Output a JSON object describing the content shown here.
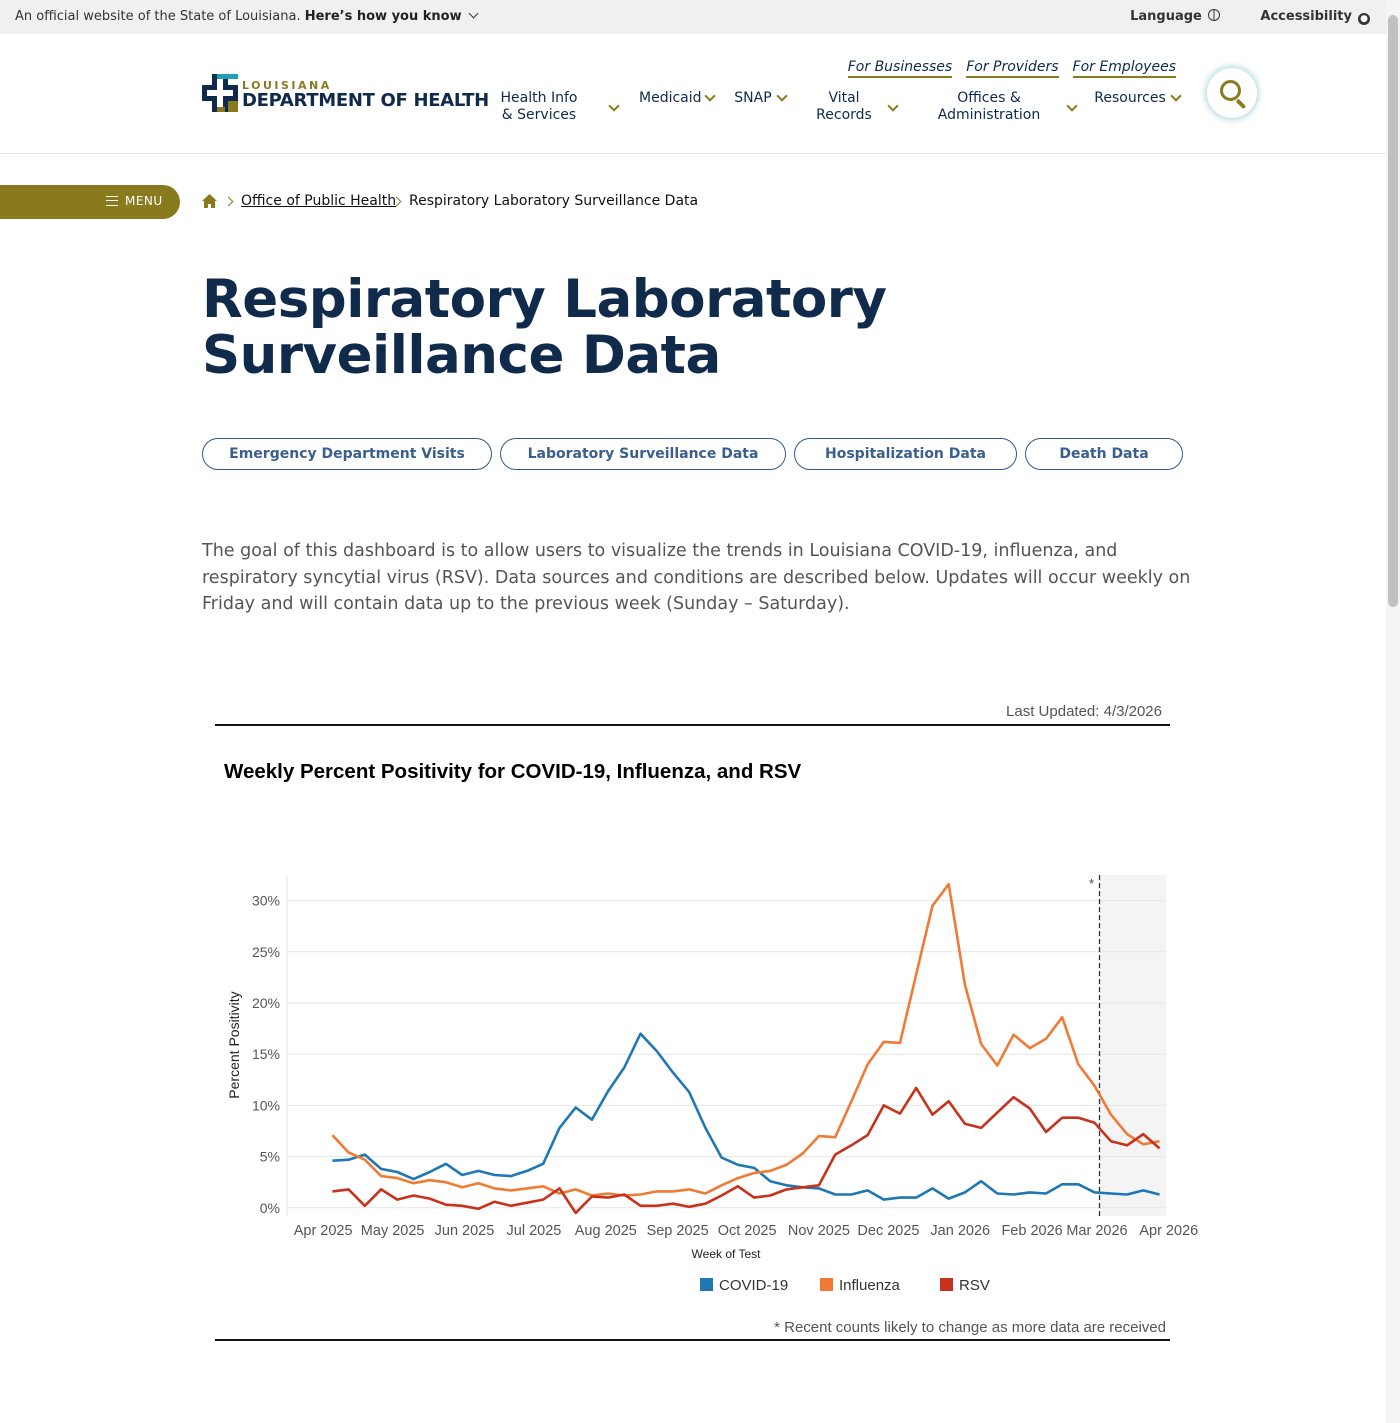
{
  "banner": {
    "text": "An official website of the State of Louisiana.",
    "link": "Here’s how you know",
    "language": "Language",
    "accessibility": "Accessibility"
  },
  "logo": {
    "line1": "LOUISIANA",
    "line2": "DEPARTMENT OF HEALTH"
  },
  "top_links": [
    "For Businesses",
    "For Providers",
    "For Employees"
  ],
  "nav": [
    {
      "line1": "Health Info",
      "line2": "& Services"
    },
    {
      "line1": "Medicaid",
      "line2": ""
    },
    {
      "line1": "SNAP",
      "line2": ""
    },
    {
      "line1": "Vital",
      "line2": "Records"
    },
    {
      "line1": "Offices &",
      "line2": "Administration"
    },
    {
      "line1": "Resources",
      "line2": ""
    }
  ],
  "menu_label": "MENU",
  "breadcrumb": {
    "link": "Office of Public Health",
    "current": "Respiratory Laboratory Surveillance Data"
  },
  "title": "Respiratory Laboratory Surveillance Data",
  "pills": [
    "Emergency Department Visits",
    "Laboratory Surveillance Data",
    "Hospitalization Data",
    "Death Data"
  ],
  "intro": "The goal of this dashboard is to allow users to visualize the trends in Louisiana COVID-19, influenza, and respiratory syncytial virus (RSV). Data sources and conditions are described below. Updates will occur weekly on Friday and will contain data up to the previous week (Sunday – Saturday).",
  "dashboard": {
    "last_updated": "Last Updated: 4/3/2026",
    "footnote": "* Recent counts likely to change as more data are received"
  },
  "colors": {
    "navy": "#0f2a4a",
    "gold": "#8a7a1e",
    "covid": "#1f77b4",
    "flu": "#ef7b35",
    "rsv": "#c8321c"
  },
  "chart_data": {
    "type": "line",
    "title": "Weekly Percent Positivity for COVID-19, Influenza, and RSV",
    "xlabel": "Week of Test",
    "ylabel": "Percent Positivity",
    "x_ticks": [
      "Apr 2025",
      "May 2025",
      "Jun 2025",
      "Jul 2025",
      "Aug 2025",
      "Sep 2025",
      "Oct 2025",
      "Nov 2025",
      "Dec 2025",
      "Jan 2026",
      "Feb 2026",
      "Mar 2026",
      "Apr 2026"
    ],
    "y_ticks": [
      "0%",
      "5%",
      "10%",
      "15%",
      "20%",
      "25%",
      "30%"
    ],
    "ylim": [
      -0.8,
      32.5
    ],
    "x_range_weeks": [
      -2.8,
      51.4
    ],
    "provisional_from_week": 47.3,
    "provisional_marker": "*",
    "grid": true,
    "legend_position": "bottom",
    "week_start": "2025-04-05",
    "series": [
      {
        "name": "COVID-19",
        "color": "#1f77b4",
        "values": [
          4.6,
          4.7,
          5.2,
          3.8,
          3.5,
          2.8,
          3.5,
          4.3,
          3.2,
          3.6,
          3.2,
          3.1,
          3.6,
          4.3,
          7.8,
          9.8,
          8.6,
          11.4,
          13.7,
          17.0,
          15.3,
          13.2,
          11.3,
          7.8,
          4.9,
          4.2,
          3.9,
          2.6,
          2.2,
          2.0,
          1.9,
          1.3,
          1.3,
          1.7,
          0.8,
          1.0,
          1.0,
          1.9,
          0.9,
          1.5,
          2.6,
          1.4,
          1.3,
          1.5,
          1.4,
          2.3,
          2.3,
          1.5,
          1.4,
          1.3,
          1.7,
          1.3
        ]
      },
      {
        "name": "Influenza",
        "color": "#ef7b35",
        "values": [
          7.1,
          5.4,
          4.7,
          3.1,
          2.9,
          2.4,
          2.7,
          2.5,
          2.0,
          2.4,
          1.9,
          1.7,
          1.9,
          2.1,
          1.4,
          1.8,
          1.2,
          1.4,
          1.2,
          1.3,
          1.6,
          1.6,
          1.8,
          1.4,
          2.2,
          2.9,
          3.4,
          3.6,
          4.2,
          5.3,
          7.0,
          6.9,
          10.4,
          14.0,
          16.2,
          16.1,
          22.8,
          29.5,
          31.6,
          21.8,
          16.0,
          13.9,
          16.9,
          15.6,
          16.5,
          18.6,
          14.0,
          11.9,
          9.1,
          7.2,
          6.2,
          6.5
        ]
      },
      {
        "name": "RSV",
        "color": "#c8321c",
        "values": [
          1.6,
          1.8,
          0.2,
          1.8,
          0.8,
          1.2,
          0.9,
          0.3,
          0.2,
          -0.1,
          0.6,
          0.2,
          0.5,
          0.8,
          1.9,
          -0.5,
          1.1,
          1.0,
          1.3,
          0.2,
          0.2,
          0.4,
          0.1,
          0.4,
          1.2,
          2.1,
          1.0,
          1.2,
          1.8,
          2.0,
          2.2,
          5.2,
          6.1,
          7.1,
          10.0,
          9.2,
          11.7,
          9.1,
          10.4,
          8.2,
          7.8,
          9.3,
          10.8,
          9.7,
          7.4,
          8.8,
          8.8,
          8.3,
          6.5,
          6.1,
          7.2,
          5.8
        ]
      }
    ]
  }
}
